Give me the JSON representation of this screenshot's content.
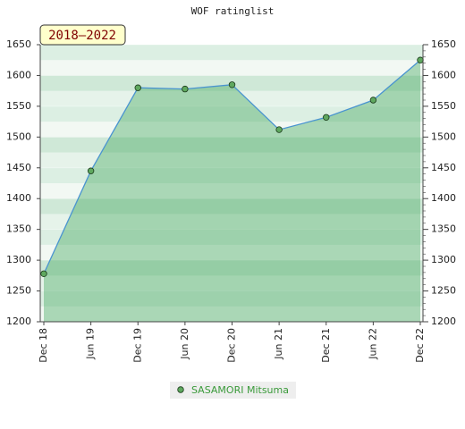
{
  "chart_data": {
    "type": "line",
    "title": "WOF ratinglist",
    "badge": "2018–2022",
    "categories": [
      "Dec 18",
      "Jun 19",
      "Dec 19",
      "Jun 20",
      "Dec 20",
      "Jun 21",
      "Dec 21",
      "Jun 22",
      "Dec 22"
    ],
    "series": [
      {
        "name": "SASAMORI Mitsuma",
        "color": "#5fa85f",
        "line_color": "#4a94d0",
        "values": [
          1278,
          1445,
          1580,
          1578,
          1585,
          1512,
          1532,
          1560,
          1625
        ]
      }
    ],
    "ylim": [
      1200,
      1650
    ],
    "yticks": [
      1200,
      1250,
      1300,
      1350,
      1400,
      1450,
      1500,
      1550,
      1600,
      1650
    ],
    "y2lim": [
      1200,
      1650
    ],
    "y2ticks": [
      1200,
      1250,
      1300,
      1350,
      1400,
      1450,
      1500,
      1550,
      1600,
      1650
    ],
    "grid": true,
    "legend": "bottom"
  }
}
